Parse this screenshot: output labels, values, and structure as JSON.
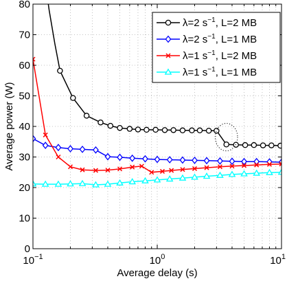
{
  "chart_data": {
    "type": "line",
    "title": "",
    "xlabel": "Average delay (s)",
    "ylabel": "Average power (W)",
    "xscale": "log",
    "xlim": [
      0.1,
      10
    ],
    "ylim": [
      0,
      80
    ],
    "grid": true,
    "legend_position": "top-right",
    "x_ticks": [
      0.1,
      1,
      10
    ],
    "x_tick_labels": [
      {
        "base": "10",
        "exp": "−1"
      },
      {
        "base": "10",
        "exp": "0"
      },
      {
        "base": "10",
        "exp": "1"
      }
    ],
    "y_ticks": [
      0,
      10,
      20,
      30,
      40,
      50,
      60,
      70,
      80
    ],
    "y_tick_labels": [
      "0",
      "10",
      "20",
      "30",
      "40",
      "50",
      "60",
      "70",
      "80"
    ],
    "series": [
      {
        "name": "λ=2 s⁻¹, L=2 MB",
        "name_parts": {
          "pre": "λ=2 s",
          "sup": "−1",
          "post": ", L=2 MB"
        },
        "color": "#000000",
        "marker": "circle",
        "x": [
          0.165,
          0.21,
          0.27,
          0.35,
          0.42,
          0.5,
          0.6,
          0.7,
          0.82,
          0.97,
          1.15,
          1.35,
          1.6,
          1.9,
          2.2,
          2.6,
          3.0,
          3.6,
          4.3,
          5.1,
          6.0,
          7.1,
          8.3,
          9.8
        ],
        "y": [
          58.2,
          49.3,
          43.5,
          41.3,
          40.2,
          39.5,
          39.2,
          39.0,
          38.9,
          38.9,
          38.8,
          38.8,
          38.7,
          38.7,
          38.7,
          38.6,
          38.6,
          34.1,
          34.0,
          33.9,
          33.9,
          33.8,
          33.8,
          33.7
        ],
        "extra_line_points": {
          "x": [
            0.1,
            0.118,
            0.135,
            0.15
          ],
          "y": [
            120,
            95,
            78,
            67
          ]
        }
      },
      {
        "name": "λ=2 s⁻¹, L=1 MB",
        "name_parts": {
          "pre": "λ=2 s",
          "sup": "−1",
          "post": ", L=1 MB"
        },
        "color": "#0000ff",
        "marker": "diamond",
        "x": [
          0.1,
          0.126,
          0.16,
          0.2,
          0.25,
          0.32,
          0.4,
          0.5,
          0.63,
          0.8,
          1.0,
          1.26,
          1.6,
          2.0,
          2.5,
          3.2,
          4.0,
          5.0,
          6.3,
          8.0,
          10.0
        ],
        "y": [
          36.0,
          33.8,
          33.1,
          32.7,
          32.5,
          32.3,
          30.1,
          29.9,
          29.6,
          29.4,
          29.2,
          29.1,
          29.0,
          28.9,
          28.8,
          28.7,
          28.6,
          28.5,
          28.5,
          28.4,
          28.3
        ]
      },
      {
        "name": "λ=1 s⁻¹, L=2 MB",
        "name_parts": {
          "pre": "λ=1 s",
          "sup": "−1",
          "post": ", L=2 MB"
        },
        "color": "#ff0000",
        "marker": "x",
        "x": [
          0.1,
          0.126,
          0.16,
          0.2,
          0.25,
          0.32,
          0.4,
          0.5,
          0.63,
          0.75,
          0.9,
          1.1,
          1.3,
          1.6,
          2.0,
          2.5,
          3.2,
          4.0,
          5.0,
          6.3,
          8.0,
          10.0
        ],
        "y": [
          62.0,
          37.2,
          30.0,
          26.8,
          25.8,
          25.6,
          25.7,
          26.1,
          26.7,
          27.0,
          25.0,
          25.3,
          25.6,
          25.9,
          26.2,
          26.5,
          26.8,
          27.0,
          27.2,
          27.4,
          27.6,
          27.7
        ]
      },
      {
        "name": "λ=1 s⁻¹, L=1 MB",
        "name_parts": {
          "pre": "λ=1 s",
          "sup": "−1",
          "post": ", L=1 MB"
        },
        "color": "#00ffff",
        "marker": "triangle",
        "x": [
          0.1,
          0.126,
          0.16,
          0.2,
          0.25,
          0.32,
          0.4,
          0.5,
          0.63,
          0.8,
          1.0,
          1.26,
          1.6,
          2.0,
          2.5,
          3.2,
          4.0,
          5.0,
          6.3,
          8.0,
          10.0
        ],
        "y": [
          21.2,
          21.1,
          21.1,
          21.2,
          21.3,
          20.9,
          21.1,
          21.5,
          21.9,
          22.2,
          22.5,
          22.8,
          23.1,
          23.4,
          23.7,
          24.0,
          24.3,
          24.5,
          24.7,
          24.9,
          25.0
        ]
      }
    ],
    "annotation": {
      "type": "dotted-ellipse",
      "center_x": 3.6,
      "center_y": 36.5,
      "rx_decades": 0.09,
      "ry_units": 4.5
    }
  }
}
